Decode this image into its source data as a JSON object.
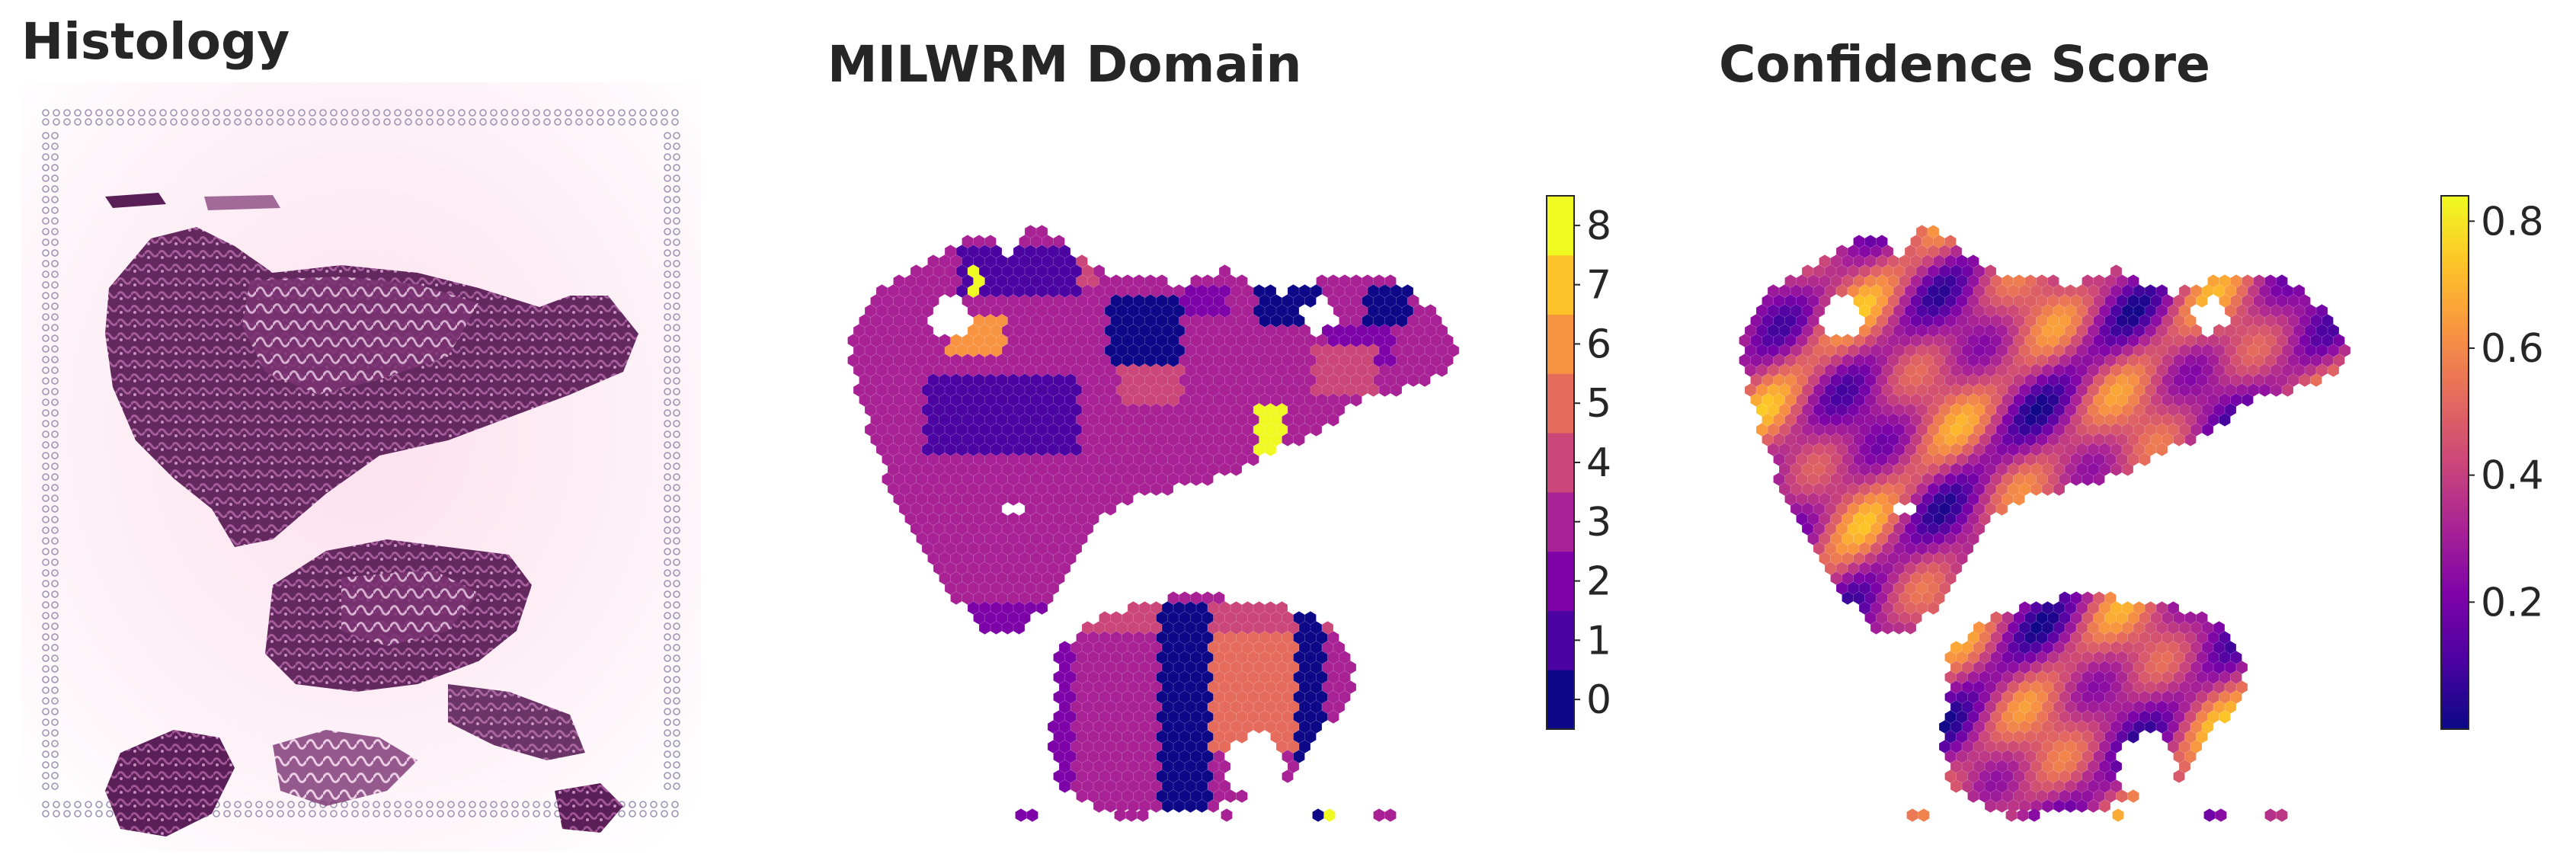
{
  "panels": {
    "histology_title": "Histology",
    "domain_title": "MILWRM Domain",
    "confidence_title": "Confidence Score"
  },
  "chart_data": [
    {
      "type": "image",
      "title": "Histology"
    },
    {
      "type": "heatmap",
      "title": "MILWRM Domain",
      "colorbar": {
        "ticks": [
          "0",
          "1",
          "2",
          "3",
          "4",
          "5",
          "6",
          "7",
          "8"
        ],
        "range": [
          0,
          8
        ],
        "levels": [
          {
            "value": 0,
            "color": "#0d0887"
          },
          {
            "value": 1,
            "color": "#4b03a1"
          },
          {
            "value": 2,
            "color": "#7d03a8"
          },
          {
            "value": 3,
            "color": "#a82296"
          },
          {
            "value": 4,
            "color": "#cb4679"
          },
          {
            "value": 5,
            "color": "#e56b5d"
          },
          {
            "value": 6,
            "color": "#f89441"
          },
          {
            "value": 7,
            "color": "#fdc328"
          },
          {
            "value": 8,
            "color": "#f0f921"
          }
        ]
      }
    },
    {
      "type": "heatmap",
      "title": "Confidence Score",
      "colorbar": {
        "ticks": [
          "0.2",
          "0.4",
          "0.6",
          "0.8"
        ],
        "range": [
          0.0,
          0.84
        ],
        "colormap": "plasma"
      }
    }
  ],
  "colors": {
    "title": "#262626",
    "histology_bg": "#fbe6f0",
    "tissue_dark": "#4a1848",
    "tissue_mid": "#8e3f7e",
    "fiducial": "#9c94b4"
  }
}
